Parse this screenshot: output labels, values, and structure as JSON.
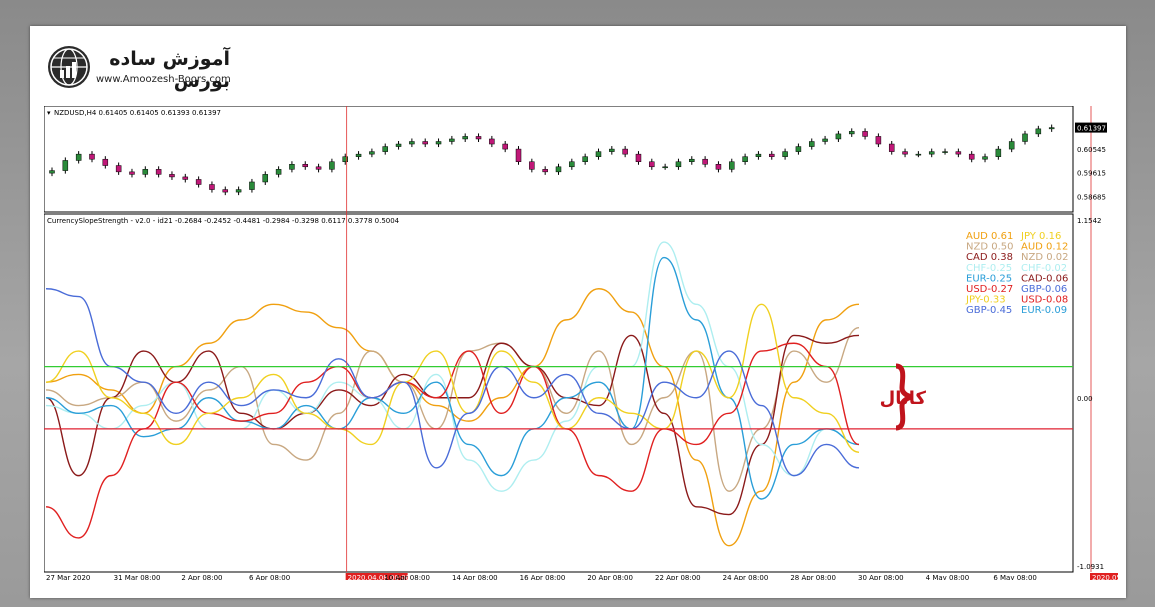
{
  "logo": {
    "title": "آموزش ساده بورس",
    "url": "www.Amoozesh-Boors.com"
  },
  "chart_data": [
    {
      "type": "candlestick",
      "symbol_header": "NZDUSD,H4  0.61405 0.61405 0.61393 0.61397",
      "price_label": "0.61397",
      "y_ticks": [
        "0.60545",
        "0.59615",
        "0.58685"
      ],
      "ylim": [
        0.583,
        0.617
      ],
      "closes": [
        0.597,
        0.601,
        0.6035,
        0.6015,
        0.599,
        0.5965,
        0.5955,
        0.5975,
        0.5955,
        0.5945,
        0.5935,
        0.5915,
        0.5895,
        0.5885,
        0.5895,
        0.5925,
        0.5955,
        0.5975,
        0.5995,
        0.5985,
        0.5975,
        0.6005,
        0.6025,
        0.6035,
        0.6045,
        0.6065,
        0.6075,
        0.6085,
        0.6075,
        0.6085,
        0.6095,
        0.6105,
        0.6095,
        0.6075,
        0.6055,
        0.6005,
        0.5975,
        0.5965,
        0.5985,
        0.6005,
        0.6025,
        0.6045,
        0.6055,
        0.6035,
        0.6005,
        0.5985,
        0.5985,
        0.6005,
        0.6015,
        0.5995,
        0.5975,
        0.6005,
        0.6025,
        0.6035,
        0.6025,
        0.6045,
        0.6065,
        0.6085,
        0.6095,
        0.6115,
        0.6125,
        0.6105,
        0.6075,
        0.6045,
        0.6035,
        0.6035,
        0.6045,
        0.6045,
        0.6035,
        0.6015,
        0.6025,
        0.6055,
        0.6085,
        0.6115,
        0.6135,
        0.614
      ]
    },
    {
      "type": "line",
      "header": "CurrencySlopeStrength - v2.0 - id21 -0.2684 -0.2452 -0.4481 -0.2984 -0.3298 0.6117 0.3778 0.5004",
      "y_ticks": [
        "1.1542",
        "0.00",
        "-1.0931"
      ],
      "ylim": [
        -1.0931,
        1.1542
      ],
      "x_tick_labels": [
        "27 Mar 2020",
        "31 Mar 08:00",
        "2 Apr 08:00",
        "6 Apr 08:00",
        "2020.04.08 00:00",
        "10 Apr 08:00",
        "14 Apr 08:00",
        "16 Apr 08:00",
        "20 Apr 08:00",
        "22 Apr 08:00",
        "24 Apr 08:00",
        "28 Apr 08:00",
        "30 Apr 08:00",
        "4 May 08:00",
        "6 May 08:00",
        "2020.05.08 00:00"
      ],
      "highlighted_dates": [
        "2020.04.08 00:00",
        "2020.05.08 00:00"
      ],
      "levels": [
        {
          "name": "upper",
          "value": 0.2,
          "color": "#33cc33"
        },
        {
          "name": "lower",
          "value": -0.2,
          "color": "#e02030"
        }
      ],
      "channel_label": "کانال",
      "series": [
        {
          "name": "AUD",
          "color": "#f0a010",
          "values": [
            0.1,
            0.15,
            0.05,
            -0.1,
            0.2,
            0.35,
            0.5,
            0.6,
            0.55,
            0.45,
            0.3,
            0.1,
            -0.05,
            -0.15,
            0.0,
            0.2,
            0.5,
            0.7,
            0.55,
            0.2,
            -0.4,
            -0.95,
            -0.6,
            0.1,
            0.5,
            0.6
          ]
        },
        {
          "name": "NZD",
          "color": "#c8a882",
          "values": [
            0.05,
            -0.05,
            0.0,
            0.1,
            -0.15,
            0.05,
            0.2,
            -0.3,
            -0.4,
            -0.1,
            0.3,
            0.1,
            -0.2,
            0.3,
            0.35,
            0.2,
            -0.1,
            0.3,
            -0.3,
            0.0,
            0.3,
            -0.6,
            -0.2,
            0.3,
            0.1,
            0.45
          ]
        },
        {
          "name": "CAD",
          "color": "#8b1a1a",
          "values": [
            0.0,
            -0.5,
            0.0,
            0.3,
            0.1,
            0.3,
            -0.1,
            -0.2,
            -0.1,
            0.05,
            -0.05,
            0.15,
            0.0,
            0.0,
            0.35,
            0.2,
            0.0,
            -0.05,
            0.4,
            -0.1,
            -0.7,
            -0.75,
            -0.3,
            0.4,
            0.35,
            0.4
          ]
        },
        {
          "name": "CHF",
          "color": "#aeeef0",
          "values": [
            -0.05,
            -0.1,
            -0.2,
            -0.05,
            0.1,
            -0.2,
            -0.2,
            0.05,
            -0.1,
            0.1,
            0.0,
            -0.2,
            0.15,
            -0.4,
            -0.6,
            -0.4,
            -0.15,
            0.2,
            0.2,
            1.0,
            0.6,
            0.2,
            -0.3,
            -0.5,
            -0.2,
            -0.3
          ]
        },
        {
          "name": "EUR",
          "color": "#2a9ed8",
          "values": [
            0.0,
            -0.1,
            -0.05,
            -0.25,
            -0.2,
            0.0,
            -0.15,
            -0.2,
            -0.05,
            -0.2,
            0.0,
            -0.1,
            0.1,
            -0.3,
            -0.5,
            -0.2,
            0.0,
            0.1,
            -0.2,
            0.9,
            0.5,
            0.0,
            -0.65,
            -0.3,
            -0.2,
            -0.3
          ]
        },
        {
          "name": "USD",
          "color": "#e02020",
          "values": [
            -0.7,
            -0.9,
            -0.5,
            -0.2,
            0.1,
            -0.1,
            -0.15,
            -0.1,
            0.1,
            0.2,
            0.0,
            0.1,
            0.0,
            0.3,
            -0.1,
            0.2,
            -0.2,
            -0.5,
            -0.6,
            -0.2,
            -0.3,
            -0.1,
            0.3,
            0.35,
            0.2,
            -0.3
          ]
        },
        {
          "name": "JPY",
          "color": "#f0d020",
          "values": [
            0.1,
            0.3,
            0.0,
            -0.1,
            -0.3,
            -0.1,
            0.0,
            0.15,
            -0.1,
            -0.2,
            -0.3,
            0.1,
            0.3,
            -0.1,
            0.3,
            0.1,
            -0.2,
            0.0,
            -0.1,
            -0.2,
            0.3,
            0.0,
            0.6,
            0.0,
            -0.1,
            -0.35
          ]
        },
        {
          "name": "GBP",
          "color": "#4a6cd8",
          "values": [
            0.7,
            0.65,
            0.2,
            0.1,
            -0.1,
            0.1,
            -0.05,
            0.05,
            0.0,
            0.25,
            0.0,
            0.1,
            -0.45,
            -0.1,
            0.2,
            0.0,
            0.15,
            -0.1,
            -0.2,
            0.1,
            0.0,
            0.3,
            -0.05,
            -0.5,
            -0.3,
            -0.45
          ]
        }
      ],
      "legend_left": [
        {
          "label": "AUD 0.61",
          "color": "#f0a010"
        },
        {
          "label": "NZD 0.50",
          "color": "#c8a882"
        },
        {
          "label": "CAD 0.38",
          "color": "#8b1a1a"
        },
        {
          "label": "CHF-0.25",
          "color": "#aeeef0"
        },
        {
          "label": "EUR-0.25",
          "color": "#2a9ed8"
        },
        {
          "label": "USD-0.27",
          "color": "#e02020"
        },
        {
          "label": "JPY-0.33",
          "color": "#f0d020"
        },
        {
          "label": "GBP-0.45",
          "color": "#4a6cd8"
        }
      ],
      "legend_right": [
        {
          "label": "JPY 0.16",
          "color": "#f0d020"
        },
        {
          "label": "AUD 0.12",
          "color": "#f0a010"
        },
        {
          "label": "NZD 0.02",
          "color": "#c8a882"
        },
        {
          "label": "CHF-0.02",
          "color": "#aeeef0"
        },
        {
          "label": "CAD-0.06",
          "color": "#8b1a1a"
        },
        {
          "label": "GBP-0.06",
          "color": "#4a6cd8"
        },
        {
          "label": "USD-0.08",
          "color": "#e02020"
        },
        {
          "label": "EUR-0.09",
          "color": "#2a9ed8"
        }
      ]
    }
  ]
}
